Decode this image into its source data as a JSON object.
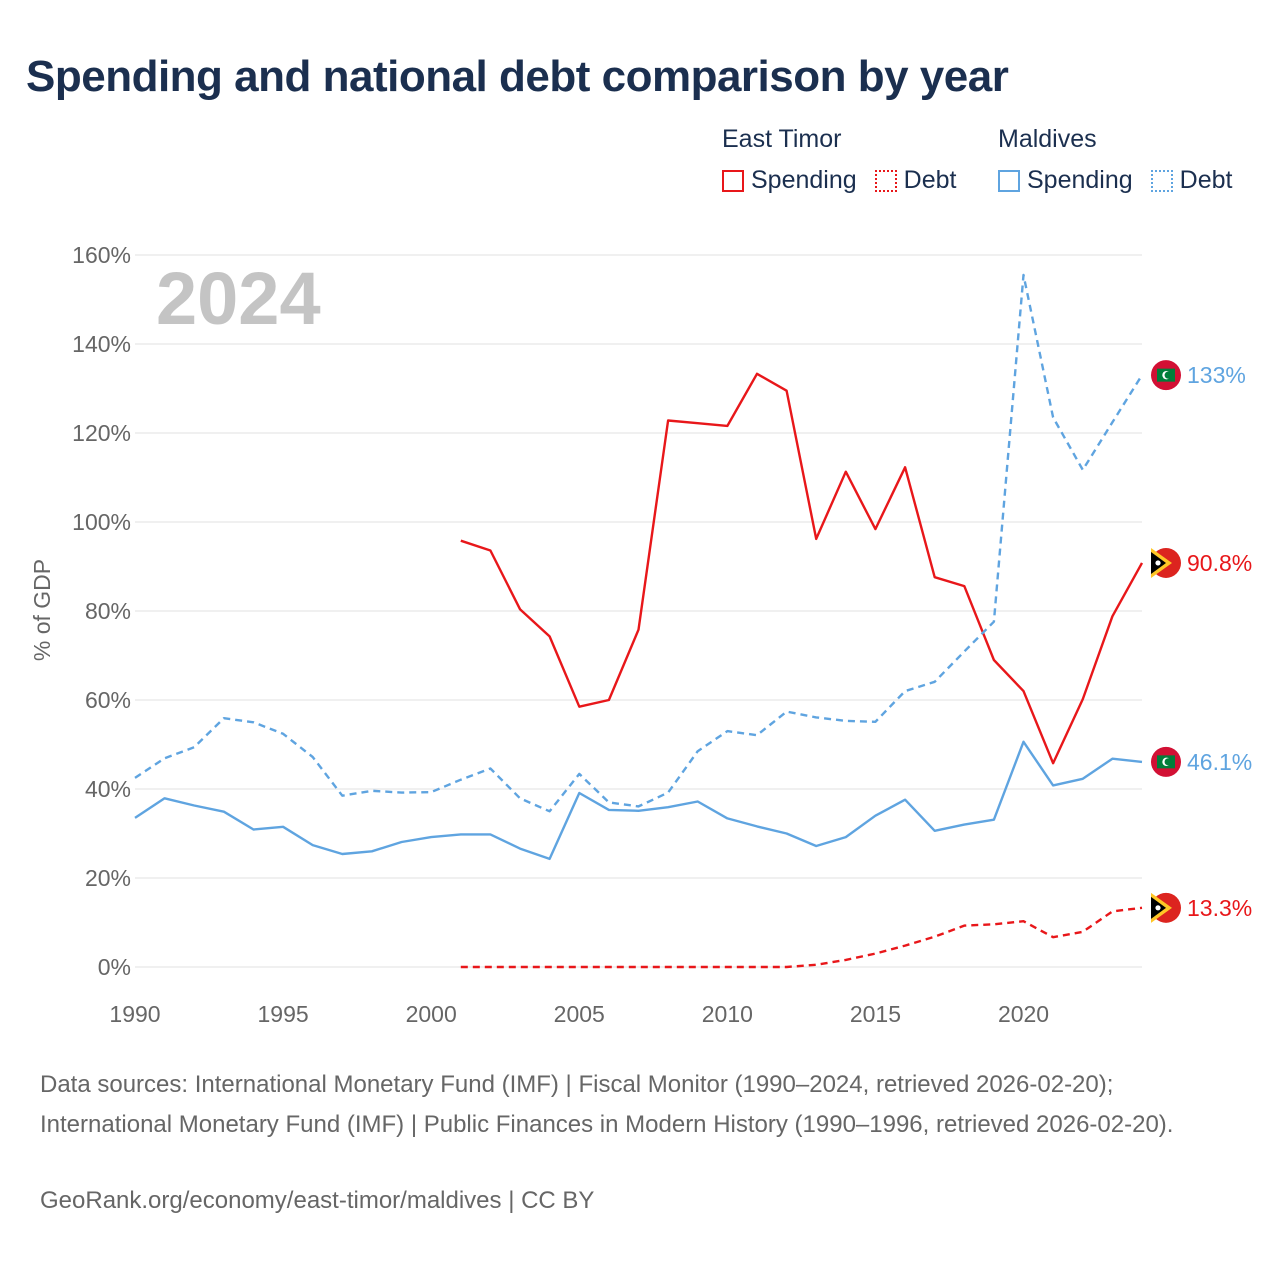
{
  "title": "Spending and national debt comparison by year",
  "legend": {
    "groups": [
      {
        "country": "East Timor",
        "color": "#e8171a",
        "items": [
          {
            "label": "Spending",
            "style": "solid"
          },
          {
            "label": "Debt",
            "style": "dotted"
          }
        ]
      },
      {
        "country": "Maldives",
        "color": "#5fa4e0",
        "items": [
          {
            "label": "Spending",
            "style": "solid"
          },
          {
            "label": "Debt",
            "style": "dotted"
          }
        ]
      }
    ]
  },
  "footer": {
    "sources": "Data sources: International Monetary Fund (IMF) | Fiscal Monitor (1990–2024, retrieved 2026-02-20); International Monetary Fund (IMF) | Public Finances in Modern History (1990–1996, retrieved 2026-02-20).",
    "credit": "GeoRank.org/economy/east-timor/maldives | CC BY"
  },
  "chart_data": {
    "type": "line",
    "watermark_year": "2024",
    "ylabel": "% of GDP",
    "xlabel": "",
    "xlim": [
      1990,
      2024
    ],
    "ylim": [
      0,
      160
    ],
    "x_ticks": [
      1990,
      1995,
      2000,
      2005,
      2010,
      2015,
      2020
    ],
    "y_ticks": [
      0,
      20,
      40,
      60,
      80,
      100,
      120,
      140,
      160
    ],
    "y_tick_labels": [
      "0%",
      "20%",
      "40%",
      "60%",
      "80%",
      "100%",
      "120%",
      "140%",
      "160%"
    ],
    "grid": "horizontal",
    "series": [
      {
        "name": "East Timor Spending",
        "country": "East Timor",
        "metric": "Spending",
        "color": "#e8171a",
        "dash": "solid",
        "flag": "east-timor-flag",
        "end_label": "90.8%",
        "x": [
          2001,
          2002,
          2003,
          2004,
          2005,
          2006,
          2007,
          2008,
          2009,
          2010,
          2011,
          2012,
          2013,
          2014,
          2015,
          2016,
          2017,
          2018,
          2019,
          2020,
          2021,
          2022,
          2023,
          2024
        ],
        "y": [
          95.8,
          93.6,
          80.4,
          74.3,
          58.5,
          60.0,
          75.8,
          122.8,
          122.2,
          121.6,
          133.3,
          129.5,
          96.2,
          111.3,
          98.4,
          112.3,
          87.6,
          85.6,
          69.0,
          62.0,
          45.8,
          60.2,
          78.8,
          90.8
        ]
      },
      {
        "name": "East Timor Debt",
        "country": "East Timor",
        "metric": "Debt",
        "color": "#e8171a",
        "dash": "dashed",
        "flag": "east-timor-flag",
        "end_label": "13.3%",
        "x": [
          2001,
          2002,
          2003,
          2004,
          2005,
          2006,
          2007,
          2008,
          2009,
          2010,
          2011,
          2012,
          2013,
          2014,
          2015,
          2016,
          2017,
          2018,
          2019,
          2020,
          2021,
          2022,
          2023,
          2024
        ],
        "y": [
          0,
          0,
          0,
          0,
          0,
          0,
          0,
          0,
          0,
          0,
          0,
          0,
          0.5,
          1.6,
          3.0,
          4.8,
          6.8,
          9.3,
          9.6,
          10.3,
          6.7,
          7.9,
          12.5,
          13.3
        ]
      },
      {
        "name": "Maldives Spending",
        "country": "Maldives",
        "metric": "Spending",
        "color": "#5fa4e0",
        "dash": "solid",
        "flag": "maldives-flag",
        "end_label": "46.1%",
        "x": [
          1990,
          1991,
          1992,
          1993,
          1994,
          1995,
          1996,
          1997,
          1998,
          1999,
          2000,
          2001,
          2002,
          2003,
          2004,
          2005,
          2006,
          2007,
          2008,
          2009,
          2010,
          2011,
          2012,
          2013,
          2014,
          2015,
          2016,
          2017,
          2018,
          2019,
          2020,
          2021,
          2022,
          2023,
          2024
        ],
        "y": [
          33.5,
          37.9,
          36.3,
          34.9,
          30.9,
          31.5,
          27.4,
          25.4,
          26.0,
          28.1,
          29.2,
          29.8,
          29.8,
          26.6,
          24.3,
          39.1,
          35.3,
          35.1,
          35.9,
          37.2,
          33.4,
          31.6,
          30.0,
          27.2,
          29.2,
          34.0,
          37.6,
          30.6,
          32.0,
          33.1,
          50.6,
          40.8,
          42.3,
          46.8,
          46.1
        ]
      },
      {
        "name": "Maldives Debt",
        "country": "Maldives",
        "metric": "Debt",
        "color": "#5fa4e0",
        "dash": "dashed",
        "flag": "maldives-flag",
        "end_label": "133%",
        "x": [
          1990,
          1991,
          1992,
          1993,
          1994,
          1995,
          1996,
          1997,
          1998,
          1999,
          2000,
          2001,
          2002,
          2003,
          2004,
          2005,
          2006,
          2007,
          2008,
          2009,
          2010,
          2011,
          2012,
          2013,
          2014,
          2015,
          2016,
          2017,
          2018,
          2019,
          2020,
          2021,
          2022,
          2023,
          2024
        ],
        "y": [
          42.5,
          46.9,
          49.4,
          55.9,
          55.0,
          52.4,
          47.2,
          38.5,
          39.6,
          39.2,
          39.3,
          42.1,
          44.6,
          37.9,
          35.0,
          43.4,
          37.0,
          36.1,
          39.2,
          48.5,
          53.0,
          52.1,
          57.4,
          56.1,
          55.3,
          55.1,
          62.0,
          64.1,
          70.9,
          77.6,
          155.5,
          123.5,
          111.7,
          122.4,
          133.0
        ]
      }
    ]
  }
}
